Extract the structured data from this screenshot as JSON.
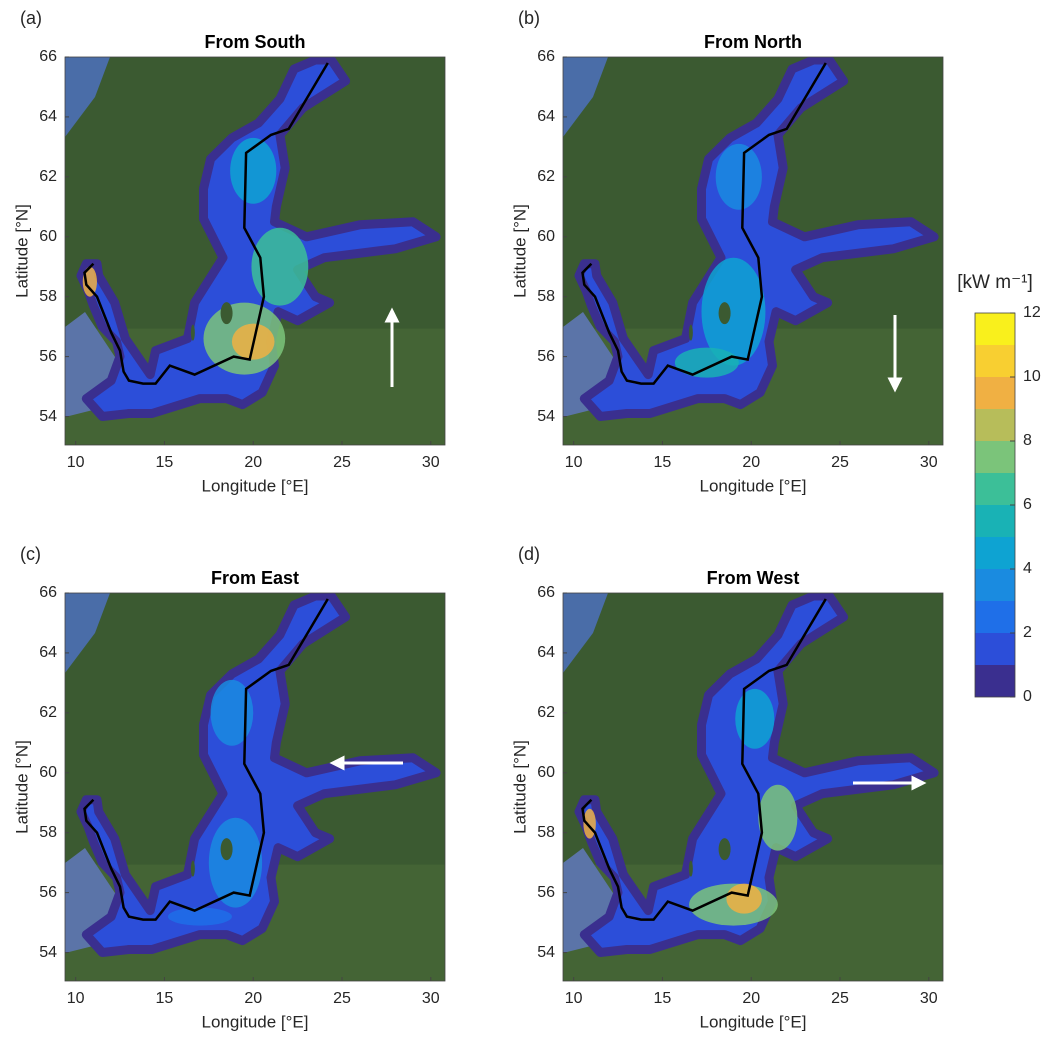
{
  "panels": [
    {
      "label": "(a)",
      "title": "From South"
    },
    {
      "label": "(b)",
      "title": "From North"
    },
    {
      "label": "(c)",
      "title": "From East"
    },
    {
      "label": "(d)",
      "title": "From West"
    }
  ],
  "xlabel": "Longitude [°E]",
  "ylabel": "Latitude [°N]",
  "xlim": [
    9.4,
    30.8
  ],
  "ylim": [
    53.05,
    66
  ],
  "xticks": [
    10,
    15,
    20,
    25,
    30
  ],
  "yticks": [
    54,
    56,
    58,
    60,
    62,
    64,
    66
  ],
  "colorbar": {
    "label": "[kW m⁻¹]",
    "lim": [
      0,
      12
    ],
    "ticks": [
      0,
      2,
      4,
      6,
      8,
      10,
      12
    ],
    "colors": [
      "#3a2f8f",
      "#2c4ed9",
      "#1f6fe8",
      "#1a8be0",
      "#0ea3d2",
      "#19b2b5",
      "#3cbf98",
      "#7bc47a",
      "#b7bd5a",
      "#f0b043",
      "#f8cf31",
      "#f9f01c"
    ]
  }
}
